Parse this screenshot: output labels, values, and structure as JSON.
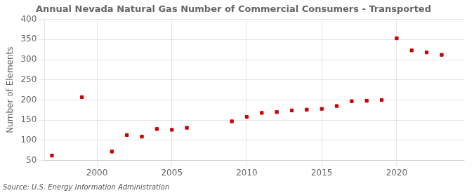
{
  "chart_data": {
    "type": "scatter",
    "title": "Annual Nevada Natural Gas Number of Commercial Consumers - Transported",
    "y_label": "Number of Elements",
    "source": "Source: U.S. Energy Information Administration",
    "x": [
      1997,
      1999,
      2001,
      2002,
      2003,
      2004,
      2005,
      2006,
      2009,
      2010,
      2011,
      2012,
      2013,
      2014,
      2015,
      2016,
      2017,
      2018,
      2019,
      2020,
      2021,
      2022,
      2023
    ],
    "values": [
      62,
      207,
      72,
      113,
      109,
      128,
      126,
      131,
      147,
      158,
      168,
      170,
      174,
      176,
      178,
      185,
      197,
      198,
      200,
      353,
      323,
      318,
      312
    ],
    "color": "#cc0000",
    "marker": "square",
    "xlim": [
      1996.5,
      2024.5
    ],
    "xticks": [
      2000,
      2005,
      2010,
      2015,
      2020
    ],
    "ylim": [
      50,
      400
    ],
    "yticks": [
      50,
      100,
      150,
      200,
      250,
      300,
      350,
      400
    ],
    "grid": true
  }
}
